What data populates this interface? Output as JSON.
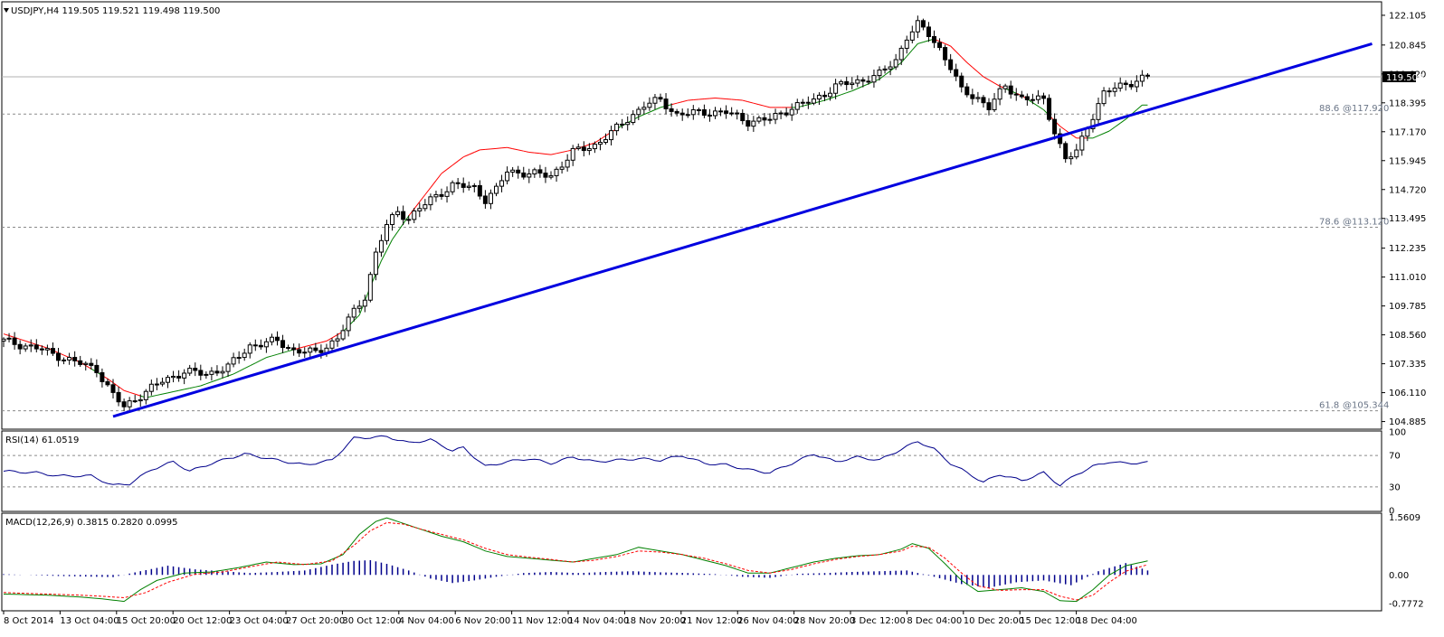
{
  "chart_data": {
    "type": "candlestick",
    "symbol_header": "USDJPY,H4  119.505 119.521 119.498 119.500",
    "current_price_label": "119.500",
    "current_price": 119.5,
    "price_axis": {
      "ylim": [
        104.6,
        122.6
      ],
      "ticks": [
        "122.105",
        "120.845",
        "119.620",
        "118.395",
        "117.170",
        "115.945",
        "114.720",
        "113.495",
        "112.235",
        "111.010",
        "109.785",
        "108.560",
        "107.335",
        "106.110",
        "104.885"
      ]
    },
    "x_tick_labels": [
      "8 Oct 2014",
      "13 Oct 04:00",
      "15 Oct 20:00",
      "20 Oct 12:00",
      "23 Oct 04:00",
      "27 Oct 20:00",
      "30 Oct 12:00",
      "4 Nov 04:00",
      "6 Nov 20:00",
      "11 Nov 12:00",
      "14 Nov 04:00",
      "18 Nov 20:00",
      "21 Nov 12:00",
      "26 Nov 04:00",
      "28 Nov 20:00",
      "3 Dec 12:00",
      "8 Dec 04:00",
      "10 Dec 20:00",
      "15 Dec 12:00",
      "18 Dec 04:00"
    ],
    "fib_levels": [
      {
        "ratio": "88.6",
        "price_label": "@117.920",
        "price": 117.92
      },
      {
        "ratio": "78.6",
        "price_label": "@113.120",
        "price": 113.12
      },
      {
        "ratio": "61.8",
        "price_label": "@105.344",
        "price": 105.344
      }
    ],
    "trendline": {
      "points": [
        {
          "bar": 20,
          "price": 105.1
        },
        {
          "bar": 250,
          "price": 120.9
        }
      ],
      "color": "#0000e0"
    },
    "price_path": [
      [
        0,
        108.3
      ],
      [
        6,
        108.0
      ],
      [
        12,
        107.5
      ],
      [
        17,
        107.1
      ],
      [
        20,
        106.0
      ],
      [
        22,
        105.5
      ],
      [
        25,
        106.0
      ],
      [
        29,
        106.6
      ],
      [
        33,
        107.0
      ],
      [
        37,
        106.9
      ],
      [
        41,
        107.2
      ],
      [
        45,
        108.1
      ],
      [
        50,
        108.3
      ],
      [
        53,
        107.9
      ],
      [
        57,
        107.8
      ],
      [
        61,
        108.4
      ],
      [
        63,
        109.2
      ],
      [
        66,
        110.2
      ],
      [
        68,
        112.0
      ],
      [
        70,
        113.2
      ],
      [
        72,
        113.8
      ],
      [
        74,
        113.5
      ],
      [
        78,
        114.3
      ],
      [
        82,
        114.9
      ],
      [
        86,
        114.8
      ],
      [
        88,
        114.3
      ],
      [
        90,
        114.7
      ],
      [
        92,
        115.5
      ],
      [
        96,
        115.4
      ],
      [
        100,
        115.3
      ],
      [
        104,
        116.3
      ],
      [
        108,
        116.6
      ],
      [
        112,
        117.3
      ],
      [
        117,
        118.3
      ],
      [
        120,
        118.5
      ],
      [
        123,
        117.9
      ],
      [
        128,
        118.0
      ],
      [
        132,
        118.0
      ],
      [
        136,
        117.6
      ],
      [
        140,
        117.7
      ],
      [
        144,
        118.2
      ],
      [
        148,
        118.5
      ],
      [
        152,
        119.1
      ],
      [
        156,
        119.3
      ],
      [
        160,
        119.6
      ],
      [
        163,
        120.2
      ],
      [
        165,
        121.2
      ],
      [
        167,
        121.7
      ],
      [
        169,
        121.3
      ],
      [
        171,
        120.7
      ],
      [
        173,
        119.9
      ],
      [
        175,
        118.9
      ],
      [
        178,
        118.6
      ],
      [
        180,
        118.2
      ],
      [
        183,
        119.1
      ],
      [
        186,
        118.6
      ],
      [
        190,
        118.5
      ],
      [
        192,
        117.2
      ],
      [
        194,
        116.0
      ],
      [
        196,
        116.3
      ],
      [
        198,
        117.4
      ],
      [
        201,
        118.8
      ],
      [
        205,
        119.2
      ],
      [
        209,
        119.5
      ]
    ],
    "ma_path": [
      [
        0,
        108.6
      ],
      [
        8,
        108.0
      ],
      [
        14,
        107.4
      ],
      [
        19,
        106.7
      ],
      [
        22,
        106.2
      ],
      [
        26,
        105.9
      ],
      [
        30,
        106.1
      ],
      [
        36,
        106.4
      ],
      [
        42,
        106.9
      ],
      [
        48,
        107.6
      ],
      [
        54,
        108.0
      ],
      [
        59,
        108.3
      ],
      [
        62,
        108.7
      ],
      [
        65,
        109.4
      ],
      [
        67,
        110.6
      ],
      [
        69,
        111.7
      ],
      [
        71,
        112.6
      ],
      [
        74,
        113.6
      ],
      [
        77,
        114.5
      ],
      [
        80,
        115.4
      ],
      [
        84,
        116.1
      ],
      [
        87,
        116.4
      ],
      [
        92,
        116.5
      ],
      [
        96,
        116.3
      ],
      [
        100,
        116.2
      ],
      [
        104,
        116.4
      ],
      [
        108,
        116.7
      ],
      [
        112,
        117.3
      ],
      [
        116,
        117.8
      ],
      [
        120,
        118.2
      ],
      [
        125,
        118.5
      ],
      [
        130,
        118.6
      ],
      [
        135,
        118.5
      ],
      [
        140,
        118.2
      ],
      [
        145,
        118.2
      ],
      [
        150,
        118.5
      ],
      [
        155,
        118.9
      ],
      [
        160,
        119.4
      ],
      [
        164,
        120.1
      ],
      [
        167,
        120.9
      ],
      [
        170,
        121.1
      ],
      [
        173,
        120.8
      ],
      [
        176,
        120.1
      ],
      [
        179,
        119.5
      ],
      [
        182,
        119.1
      ],
      [
        186,
        118.7
      ],
      [
        190,
        118.1
      ],
      [
        193,
        117.4
      ],
      [
        196,
        116.9
      ],
      [
        199,
        116.9
      ],
      [
        202,
        117.2
      ],
      [
        205,
        117.7
      ],
      [
        208,
        118.3
      ]
    ],
    "rsi": {
      "label": "RSI(14) 61.0519",
      "ylim": [
        0,
        100
      ],
      "ticks": [
        "100",
        "70",
        "30",
        "0"
      ],
      "levels": [
        70,
        30
      ],
      "path": [
        [
          0,
          50
        ],
        [
          6,
          48
        ],
        [
          10,
          44
        ],
        [
          16,
          44
        ],
        [
          20,
          32
        ],
        [
          23,
          34
        ],
        [
          27,
          52
        ],
        [
          31,
          62
        ],
        [
          34,
          50
        ],
        [
          38,
          60
        ],
        [
          44,
          72
        ],
        [
          50,
          64
        ],
        [
          55,
          58
        ],
        [
          60,
          64
        ],
        [
          64,
          92
        ],
        [
          67,
          93
        ],
        [
          70,
          94
        ],
        [
          74,
          86
        ],
        [
          78,
          90
        ],
        [
          82,
          76
        ],
        [
          84,
          80
        ],
        [
          88,
          56
        ],
        [
          92,
          62
        ],
        [
          96,
          66
        ],
        [
          100,
          60
        ],
        [
          104,
          68
        ],
        [
          108,
          62
        ],
        [
          112,
          64
        ],
        [
          116,
          66
        ],
        [
          120,
          64
        ],
        [
          124,
          70
        ],
        [
          128,
          60
        ],
        [
          132,
          58
        ],
        [
          136,
          52
        ],
        [
          140,
          48
        ],
        [
          144,
          60
        ],
        [
          148,
          72
        ],
        [
          152,
          62
        ],
        [
          156,
          68
        ],
        [
          160,
          64
        ],
        [
          164,
          78
        ],
        [
          167,
          88
        ],
        [
          170,
          78
        ],
        [
          173,
          60
        ],
        [
          176,
          48
        ],
        [
          179,
          36
        ],
        [
          182,
          46
        ],
        [
          186,
          38
        ],
        [
          190,
          48
        ],
        [
          193,
          32
        ],
        [
          196,
          46
        ],
        [
          199,
          56
        ],
        [
          202,
          62
        ],
        [
          205,
          60
        ],
        [
          209,
          61
        ]
      ]
    },
    "macd": {
      "label": "MACD(12,26,9) 0.3815 0.2820 0.0995",
      "ylim": [
        -0.95,
        1.65
      ],
      "ticks": [
        "1.5609",
        "0.00",
        "-0.7772"
      ],
      "histogram_color": "#00008b",
      "main_color": "#008000",
      "signal_color": "#ff0000",
      "histogram": [
        [
          0,
          0.02
        ],
        [
          10,
          -0.03
        ],
        [
          20,
          -0.06
        ],
        [
          25,
          0.1
        ],
        [
          30,
          0.25
        ],
        [
          35,
          0.15
        ],
        [
          40,
          0.1
        ],
        [
          45,
          0.05
        ],
        [
          50,
          0.08
        ],
        [
          55,
          0.12
        ],
        [
          60,
          0.28
        ],
        [
          64,
          0.38
        ],
        [
          67,
          0.4
        ],
        [
          70,
          0.3
        ],
        [
          74,
          0.12
        ],
        [
          78,
          -0.1
        ],
        [
          82,
          -0.22
        ],
        [
          86,
          -0.15
        ],
        [
          90,
          -0.05
        ],
        [
          95,
          0.05
        ],
        [
          100,
          0.08
        ],
        [
          105,
          0.05
        ],
        [
          110,
          0.08
        ],
        [
          115,
          0.1
        ],
        [
          120,
          0.07
        ],
        [
          125,
          0.05
        ],
        [
          130,
          0.02
        ],
        [
          135,
          -0.05
        ],
        [
          140,
          -0.08
        ],
        [
          145,
          0.03
        ],
        [
          150,
          0.05
        ],
        [
          155,
          0.08
        ],
        [
          160,
          0.1
        ],
        [
          165,
          0.12
        ],
        [
          170,
          -0.05
        ],
        [
          175,
          -0.25
        ],
        [
          180,
          -0.35
        ],
        [
          185,
          -0.2
        ],
        [
          190,
          -0.15
        ],
        [
          195,
          -0.28
        ],
        [
          200,
          0.1
        ],
        [
          205,
          0.32
        ],
        [
          209,
          0.12
        ]
      ],
      "main_path": [
        [
          0,
          -0.52
        ],
        [
          8,
          -0.55
        ],
        [
          14,
          -0.6
        ],
        [
          18,
          -0.65
        ],
        [
          22,
          -0.72
        ],
        [
          25,
          -0.4
        ],
        [
          28,
          -0.15
        ],
        [
          33,
          0.05
        ],
        [
          38,
          0.08
        ],
        [
          43,
          0.2
        ],
        [
          48,
          0.35
        ],
        [
          53,
          0.28
        ],
        [
          58,
          0.3
        ],
        [
          62,
          0.55
        ],
        [
          65,
          1.1
        ],
        [
          68,
          1.45
        ],
        [
          70,
          1.55
        ],
        [
          73,
          1.4
        ],
        [
          76,
          1.25
        ],
        [
          80,
          1.05
        ],
        [
          84,
          0.9
        ],
        [
          88,
          0.65
        ],
        [
          92,
          0.5
        ],
        [
          96,
          0.45
        ],
        [
          100,
          0.4
        ],
        [
          104,
          0.35
        ],
        [
          108,
          0.45
        ],
        [
          112,
          0.55
        ],
        [
          116,
          0.75
        ],
        [
          120,
          0.65
        ],
        [
          124,
          0.55
        ],
        [
          128,
          0.4
        ],
        [
          132,
          0.25
        ],
        [
          136,
          0.05
        ],
        [
          140,
          0.05
        ],
        [
          144,
          0.2
        ],
        [
          148,
          0.35
        ],
        [
          152,
          0.45
        ],
        [
          156,
          0.52
        ],
        [
          160,
          0.55
        ],
        [
          164,
          0.7
        ],
        [
          166,
          0.85
        ],
        [
          169,
          0.72
        ],
        [
          172,
          0.3
        ],
        [
          175,
          -0.15
        ],
        [
          178,
          -0.45
        ],
        [
          182,
          -0.4
        ],
        [
          186,
          -0.35
        ],
        [
          190,
          -0.45
        ],
        [
          193,
          -0.7
        ],
        [
          196,
          -0.72
        ],
        [
          199,
          -0.4
        ],
        [
          202,
          0.0
        ],
        [
          205,
          0.25
        ],
        [
          209,
          0.38
        ]
      ],
      "signal_path": [
        [
          0,
          -0.48
        ],
        [
          8,
          -0.52
        ],
        [
          14,
          -0.55
        ],
        [
          18,
          -0.58
        ],
        [
          22,
          -0.62
        ],
        [
          26,
          -0.48
        ],
        [
          30,
          -0.2
        ],
        [
          35,
          0.02
        ],
        [
          40,
          0.08
        ],
        [
          45,
          0.22
        ],
        [
          50,
          0.35
        ],
        [
          55,
          0.28
        ],
        [
          60,
          0.38
        ],
        [
          64,
          0.8
        ],
        [
          67,
          1.2
        ],
        [
          70,
          1.42
        ],
        [
          73,
          1.38
        ],
        [
          76,
          1.25
        ],
        [
          80,
          1.1
        ],
        [
          84,
          0.95
        ],
        [
          88,
          0.72
        ],
        [
          92,
          0.55
        ],
        [
          96,
          0.48
        ],
        [
          100,
          0.42
        ],
        [
          104,
          0.35
        ],
        [
          108,
          0.4
        ],
        [
          112,
          0.5
        ],
        [
          116,
          0.65
        ],
        [
          120,
          0.62
        ],
        [
          124,
          0.55
        ],
        [
          128,
          0.45
        ],
        [
          132,
          0.3
        ],
        [
          136,
          0.12
        ],
        [
          140,
          0.05
        ],
        [
          144,
          0.15
        ],
        [
          148,
          0.3
        ],
        [
          152,
          0.42
        ],
        [
          156,
          0.5
        ],
        [
          160,
          0.55
        ],
        [
          164,
          0.65
        ],
        [
          166,
          0.78
        ],
        [
          169,
          0.75
        ],
        [
          172,
          0.45
        ],
        [
          175,
          0.05
        ],
        [
          178,
          -0.3
        ],
        [
          182,
          -0.42
        ],
        [
          186,
          -0.4
        ],
        [
          190,
          -0.4
        ],
        [
          193,
          -0.58
        ],
        [
          196,
          -0.68
        ],
        [
          199,
          -0.55
        ],
        [
          202,
          -0.2
        ],
        [
          205,
          0.1
        ],
        [
          209,
          0.28
        ]
      ]
    },
    "colors": {
      "background": "#ffffff",
      "candle": "#000000",
      "ma_up": "#008000",
      "ma_down": "#ff0000",
      "trendline": "#0000e0",
      "grid_dashed": "#8a8a8a",
      "panel_border": "#000000"
    }
  }
}
